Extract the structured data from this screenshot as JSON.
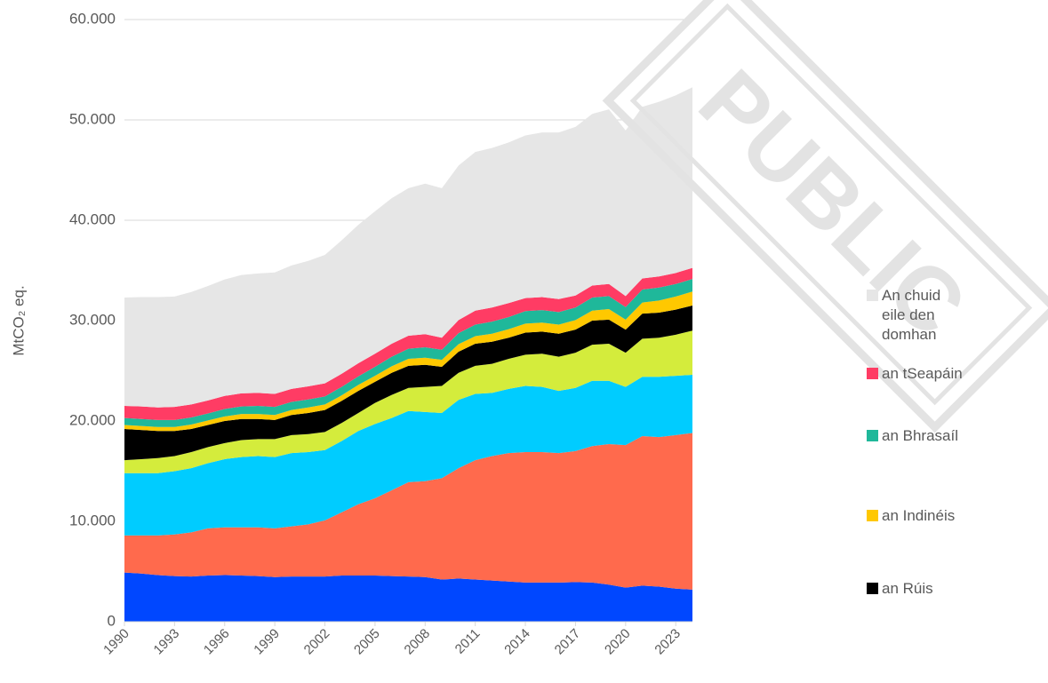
{
  "chart_data": {
    "type": "stacked-area",
    "ylabel": "MtCO₂ eq.",
    "watermark": "PUBLIC",
    "x": [
      1990,
      1991,
      1992,
      1993,
      1994,
      1995,
      1996,
      1997,
      1998,
      1999,
      2000,
      2001,
      2002,
      2003,
      2004,
      2005,
      2006,
      2007,
      2008,
      2009,
      2010,
      2011,
      2012,
      2013,
      2014,
      2015,
      2016,
      2017,
      2018,
      2019,
      2020,
      2021,
      2022,
      2023,
      2024
    ],
    "xlim": [
      1990,
      2024
    ],
    "xticks": [
      1990,
      1993,
      1996,
      1999,
      2002,
      2005,
      2008,
      2011,
      2014,
      2017,
      2020,
      2023
    ],
    "ylim": [
      0,
      60000
    ],
    "yticks": [
      0,
      {
        "value": 10000,
        "label": "10.000"
      },
      {
        "value": 20000,
        "label": "20.000"
      },
      {
        "value": 30000,
        "label": "30.000"
      },
      {
        "value": 40000,
        "label": "40.000"
      },
      {
        "value": 50000,
        "label": "50.000"
      },
      {
        "value": 60000,
        "label": "60.000"
      }
    ],
    "grid": true,
    "legend": "right",
    "series": [
      {
        "color": "#0047ff",
        "values": [
          4900,
          4800,
          4650,
          4550,
          4500,
          4600,
          4650,
          4600,
          4550,
          4450,
          4500,
          4500,
          4500,
          4600,
          4600,
          4600,
          4550,
          4500,
          4450,
          4200,
          4300,
          4200,
          4100,
          4000,
          3900,
          3900,
          3900,
          3950,
          3900,
          3700,
          3400,
          3600,
          3500,
          3300,
          3200
        ]
      },
      {
        "color": "#ff6a4d",
        "values": [
          3700,
          3800,
          3950,
          4150,
          4400,
          4700,
          4750,
          4800,
          4850,
          4850,
          5000,
          5200,
          5600,
          6300,
          7100,
          7700,
          8550,
          9400,
          9550,
          10100,
          11000,
          11900,
          12400,
          12800,
          13000,
          13000,
          12900,
          13050,
          13600,
          14000,
          14200,
          14900,
          14900,
          15300,
          15600
        ]
      },
      {
        "color": "#00ccff",
        "values": [
          6200,
          6200,
          6200,
          6300,
          6400,
          6500,
          6800,
          7000,
          7100,
          7100,
          7300,
          7200,
          7000,
          7100,
          7300,
          7400,
          7200,
          7100,
          6900,
          6500,
          6800,
          6600,
          6300,
          6400,
          6600,
          6500,
          6200,
          6300,
          6500,
          6300,
          5800,
          5900,
          6000,
          5900,
          5800
        ]
      },
      {
        "color": "#d4ec3c",
        "values": [
          1300,
          1400,
          1500,
          1500,
          1600,
          1600,
          1600,
          1700,
          1700,
          1800,
          1800,
          1800,
          1800,
          1800,
          1800,
          2100,
          2300,
          2300,
          2500,
          2700,
          2700,
          2800,
          2900,
          3000,
          3100,
          3300,
          3400,
          3500,
          3600,
          3700,
          3400,
          3800,
          3900,
          4100,
          4400
        ]
      },
      {
        "name": "an Rúis",
        "color": "#000000",
        "values": [
          3100,
          2900,
          2700,
          2500,
          2300,
          2200,
          2200,
          2100,
          2000,
          1900,
          2000,
          2100,
          2200,
          2200,
          2200,
          2100,
          2200,
          2200,
          2200,
          1900,
          2100,
          2200,
          2200,
          2100,
          2200,
          2200,
          2300,
          2300,
          2400,
          2400,
          2300,
          2500,
          2500,
          2500,
          2500
        ]
      },
      {
        "name": "an Indinéis",
        "color": "#ffc800",
        "values": [
          400,
          400,
          400,
          400,
          450,
          450,
          450,
          500,
          500,
          500,
          500,
          550,
          550,
          550,
          600,
          600,
          650,
          700,
          700,
          700,
          750,
          750,
          800,
          850,
          900,
          900,
          900,
          950,
          1000,
          1050,
          1000,
          1100,
          1200,
          1300,
          1400
        ]
      },
      {
        "name": "an Bhrasaíl",
        "color": "#1fb89a",
        "values": [
          700,
          700,
          700,
          700,
          700,
          700,
          750,
          750,
          800,
          800,
          800,
          800,
          800,
          850,
          850,
          900,
          950,
          1000,
          1050,
          1000,
          1100,
          1150,
          1200,
          1200,
          1250,
          1250,
          1250,
          1250,
          1300,
          1300,
          1250,
          1300,
          1300,
          1250,
          1250
        ]
      },
      {
        "name": "an tSeapáin",
        "color": "#ff3c64",
        "values": [
          1200,
          1250,
          1250,
          1300,
          1300,
          1300,
          1300,
          1300,
          1300,
          1300,
          1300,
          1300,
          1300,
          1300,
          1300,
          1300,
          1300,
          1300,
          1300,
          1200,
          1300,
          1400,
          1400,
          1400,
          1300,
          1300,
          1300,
          1200,
          1200,
          1200,
          1100,
          1100,
          1100,
          1100,
          1100
        ]
      },
      {
        "name": "An chuid eile den domhan",
        "color": "#e6e6e6",
        "values": [
          10800,
          10900,
          11000,
          11000,
          11200,
          11400,
          11600,
          11800,
          11900,
          12100,
          12300,
          12500,
          12800,
          13300,
          13800,
          14200,
          14500,
          14700,
          15000,
          14900,
          15400,
          15800,
          15900,
          16000,
          16200,
          16400,
          16600,
          16800,
          17100,
          17400,
          16500,
          17100,
          17400,
          17700,
          18000
        ]
      }
    ]
  }
}
